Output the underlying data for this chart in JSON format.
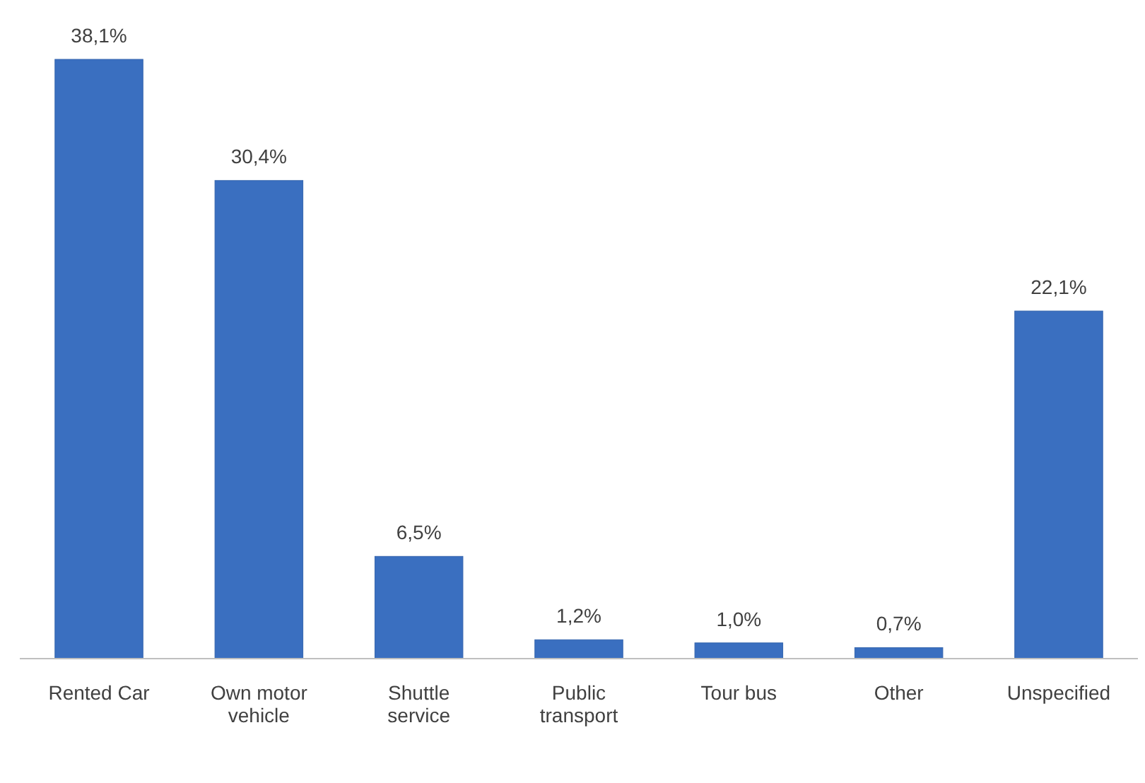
{
  "chart_data": {
    "type": "bar",
    "categories": [
      "Rented Car",
      "Own motor vehicle",
      "Shuttle service",
      "Public transport",
      "Tour bus",
      "Other",
      "Unspecified"
    ],
    "values": [
      38.1,
      30.4,
      6.5,
      1.2,
      1.0,
      0.7,
      22.1
    ],
    "value_labels": [
      "38,1%",
      "30,4%",
      "6,5%",
      "1,2%",
      "1,0%",
      "0,7%",
      "22,1%"
    ],
    "color": "#3a6fc0"
  }
}
